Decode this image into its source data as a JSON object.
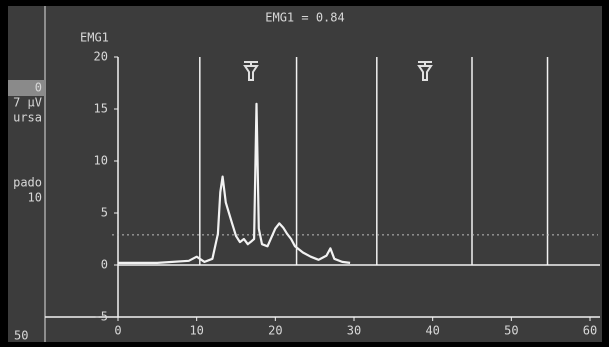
{
  "sidebar": {
    "labels": [
      "0",
      "7 µV",
      "ursa",
      "pado",
      "10",
      "50"
    ]
  },
  "chart_data": {
    "type": "line",
    "title": "EMG1 = 0.84",
    "y_label": "EMG1",
    "xlim": [
      0,
      60
    ],
    "xticks": [
      0,
      10,
      20,
      30,
      40,
      50,
      60
    ],
    "ylim": [
      -5,
      20
    ],
    "yticks": [
      -5,
      0,
      5,
      10,
      15,
      20
    ],
    "color": "#f2f2f2",
    "series": [
      {
        "x": [
          0,
          5,
          9,
          10,
          11,
          12,
          12.7,
          13,
          13.3,
          13.7,
          14.5,
          15,
          15.5,
          16,
          16.5,
          17,
          17.3,
          17.6,
          17.9,
          18.3,
          19,
          20,
          20.5,
          21,
          21.5,
          22,
          22.5,
          23.5,
          24.5,
          25.5,
          26.5,
          27,
          27.5,
          28.5,
          29.5
        ],
        "values": [
          0.2,
          0.2,
          0.4,
          0.8,
          0.3,
          0.6,
          3,
          7,
          8.5,
          6,
          4,
          2.8,
          2.2,
          2.5,
          2,
          2.3,
          2.5,
          15.5,
          3.5,
          2,
          1.8,
          3.5,
          4,
          3.6,
          3,
          2.5,
          1.8,
          1.2,
          0.8,
          0.5,
          0.9,
          1.6,
          0.6,
          0.3,
          0.2
        ]
      }
    ],
    "markers": [
      10.4,
      22.7,
      32.9,
      45,
      54.6
    ],
    "threshold": 2.9
  }
}
